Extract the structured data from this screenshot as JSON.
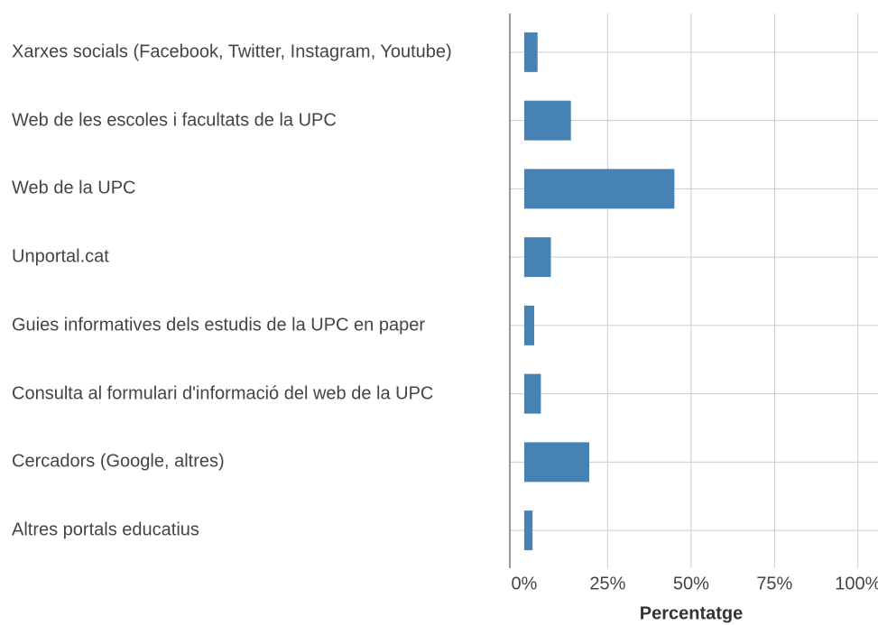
{
  "chart_data": {
    "type": "barh",
    "xlabel": "Percentatge",
    "categories": [
      "Xarxes socials (Facebook, Twitter, Instagram, Youtube)",
      "Web de les escoles i facultats de la UPC",
      "Web de la UPC",
      "Unportal.cat",
      "Guies informatives dels estudis de la UPC en paper",
      "Consulta al formulari d'informació del web de la UPC",
      "Cercadors (Google, altres)",
      "Altres portals educatius"
    ],
    "values": [
      4,
      14,
      45,
      8,
      3,
      5,
      19.5,
      2.5
    ],
    "color": "#4682b4",
    "xlim": [
      -4.3,
      106
    ],
    "xticks": [
      {
        "value": 0,
        "label": "0%"
      },
      {
        "value": 25,
        "label": "25%"
      },
      {
        "value": 50,
        "label": "50%"
      },
      {
        "value": 75,
        "label": "75%"
      },
      {
        "value": 100,
        "label": "100%"
      }
    ],
    "grid": true
  }
}
